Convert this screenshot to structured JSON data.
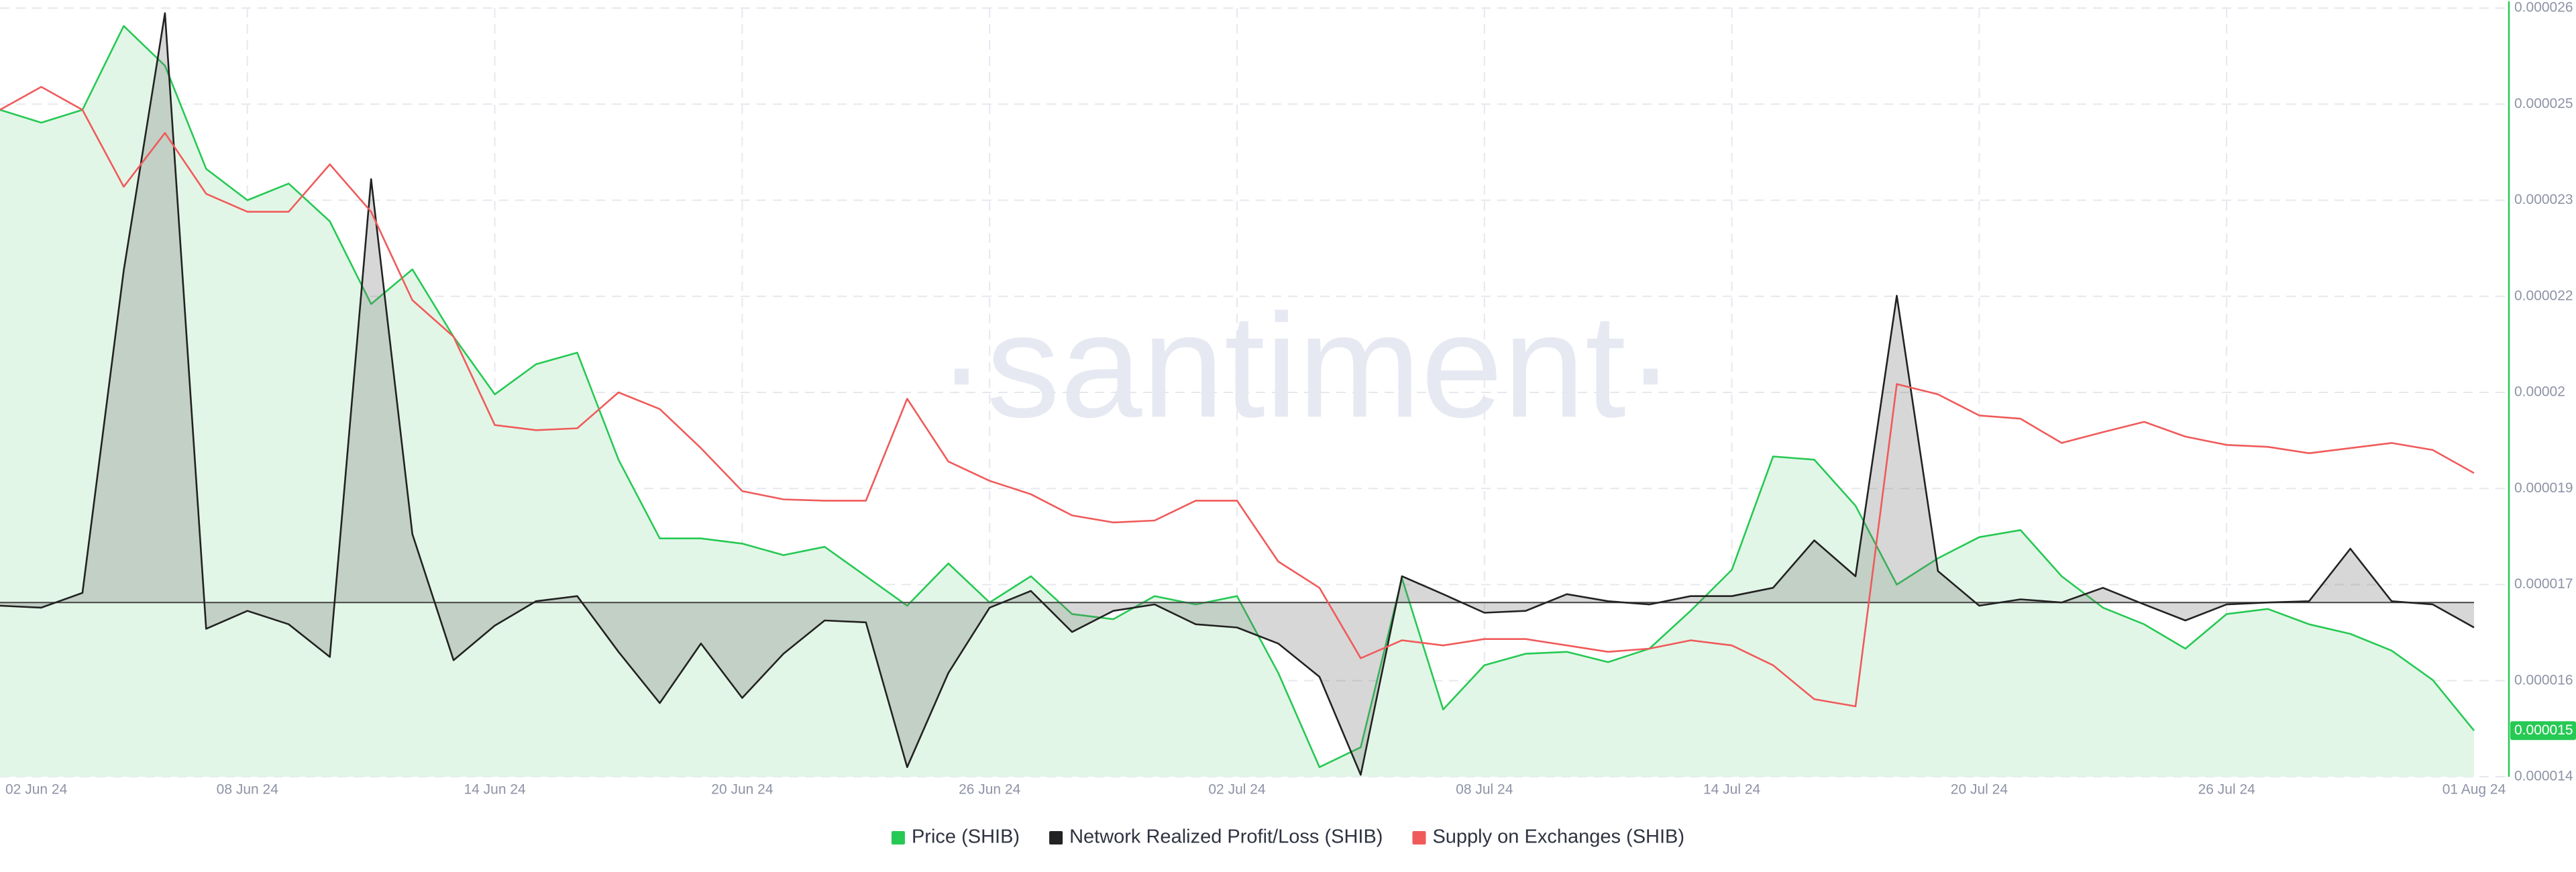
{
  "chart_data": {
    "type": "line",
    "watermark": "·santiment·",
    "categories": [
      "02 Jun 24",
      null,
      null,
      null,
      null,
      null,
      "08 Jun 24",
      null,
      null,
      null,
      null,
      null,
      "14 Jun 24",
      null,
      null,
      null,
      null,
      null,
      "20 Jun 24",
      null,
      null,
      null,
      null,
      null,
      "26 Jun 24",
      null,
      null,
      null,
      null,
      null,
      "02 Jul 24",
      null,
      null,
      null,
      null,
      null,
      "08 Jul 24",
      null,
      null,
      null,
      null,
      null,
      "14 Jul 24",
      null,
      null,
      null,
      null,
      null,
      "20 Jul 24",
      null,
      null,
      null,
      null,
      null,
      "26 Jul 24",
      null,
      null,
      null,
      null,
      null,
      "01 Aug 24"
    ],
    "ylim": [
      1.4e-05,
      2.6e-05
    ],
    "yticks": [
      {
        "value": 1.4e-05,
        "label": "0.000014"
      },
      {
        "value": 1.55e-05,
        "label": "0.000016"
      },
      {
        "value": 1.7e-05,
        "label": "0.000017"
      },
      {
        "value": 1.85e-05,
        "label": "0.000019"
      },
      {
        "value": 2e-05,
        "label": "0.00002"
      },
      {
        "value": 2.15e-05,
        "label": "0.000022"
      },
      {
        "value": 2.3e-05,
        "label": "0.000023"
      },
      {
        "value": 2.45e-05,
        "label": "0.000025"
      },
      {
        "value": 2.6e-05,
        "label": "0.000026"
      }
    ],
    "grid": true,
    "legend": "bottom",
    "current_price_label": "0.000015",
    "series": [
      {
        "name": "Price (SHIB)",
        "color": "#26c953",
        "fill": "#e2f6e7",
        "values": [
          2.441e-05,
          2.421e-05,
          2.441e-05,
          2.572e-05,
          2.51e-05,
          2.349e-05,
          2.3e-05,
          2.326e-05,
          2.267e-05,
          2.138e-05,
          2.192e-05,
          2.087e-05,
          1.997e-05,
          2.044e-05,
          2.062e-05,
          1.895e-05,
          1.772e-05,
          1.772e-05,
          1.764e-05,
          1.746e-05,
          1.759e-05,
          1.713e-05,
          1.667e-05,
          1.733e-05,
          1.672e-05,
          1.713e-05,
          1.654e-05,
          1.646e-05,
          1.682e-05,
          1.669e-05,
          1.682e-05,
          1.562e-05,
          1.415e-05,
          1.446e-05,
          1.71e-05,
          1.505e-05,
          1.574e-05,
          1.592e-05,
          1.595e-05,
          1.579e-05,
          1.6e-05,
          1.659e-05,
          1.723e-05,
          1.9e-05,
          1.895e-05,
          1.823e-05,
          1.7e-05,
          1.741e-05,
          1.774e-05,
          1.785e-05,
          1.713e-05,
          1.664e-05,
          1.638e-05,
          1.6e-05,
          1.654e-05,
          1.662e-05,
          1.638e-05,
          1.623e-05,
          1.597e-05,
          1.551e-05,
          1.472e-05
        ]
      },
      {
        "name": "Network Realized Profit/Loss (SHIB)",
        "color": "#222222",
        "fill": "rgba(110,110,110,0.28)",
        "baseline": 1.672e-05,
        "values": [
          1.667e-05,
          1.664e-05,
          1.687e-05,
          2.19e-05,
          2.592e-05,
          1.631e-05,
          1.659e-05,
          1.638e-05,
          1.587e-05,
          2.333e-05,
          1.779e-05,
          1.582e-05,
          1.636e-05,
          1.674e-05,
          1.682e-05,
          1.595e-05,
          1.515e-05,
          1.608e-05,
          1.523e-05,
          1.592e-05,
          1.644e-05,
          1.641e-05,
          1.415e-05,
          1.562e-05,
          1.664e-05,
          1.69e-05,
          1.626e-05,
          1.659e-05,
          1.669e-05,
          1.638e-05,
          1.633e-05,
          1.608e-05,
          1.556e-05,
          1.403e-05,
          1.713e-05,
          1.685e-05,
          1.656e-05,
          1.659e-05,
          1.685e-05,
          1.674e-05,
          1.669e-05,
          1.682e-05,
          1.682e-05,
          1.695e-05,
          1.769e-05,
          1.713e-05,
          2.151e-05,
          1.721e-05,
          1.667e-05,
          1.677e-05,
          1.672e-05,
          1.695e-05,
          1.669e-05,
          1.644e-05,
          1.669e-05,
          1.672e-05,
          1.674e-05,
          1.756e-05,
          1.674e-05,
          1.669e-05,
          1.633e-05
        ]
      },
      {
        "name": "Supply on Exchanges (SHIB)",
        "color": "#f05a5a",
        "values": [
          2.441e-05,
          2.477e-05,
          2.441e-05,
          2.321e-05,
          2.405e-05,
          2.31e-05,
          2.282e-05,
          2.282e-05,
          2.356e-05,
          2.282e-05,
          2.144e-05,
          2.087e-05,
          1.949e-05,
          1.941e-05,
          1.944e-05,
          2e-05,
          1.974e-05,
          1.913e-05,
          1.846e-05,
          1.833e-05,
          1.831e-05,
          1.831e-05,
          1.99e-05,
          1.892e-05,
          1.862e-05,
          1.841e-05,
          1.808e-05,
          1.797e-05,
          1.8e-05,
          1.831e-05,
          1.831e-05,
          1.736e-05,
          1.695e-05,
          1.585e-05,
          1.613e-05,
          1.605e-05,
          1.615e-05,
          1.615e-05,
          1.605e-05,
          1.595e-05,
          1.6e-05,
          1.613e-05,
          1.605e-05,
          1.574e-05,
          1.521e-05,
          1.51e-05,
          2.013e-05,
          1.997e-05,
          1.964e-05,
          1.959e-05,
          1.921e-05,
          1.938e-05,
          1.954e-05,
          1.931e-05,
          1.918e-05,
          1.915e-05,
          1.905e-05,
          1.913e-05,
          1.921e-05,
          1.91e-05,
          1.874e-05
        ]
      }
    ]
  }
}
